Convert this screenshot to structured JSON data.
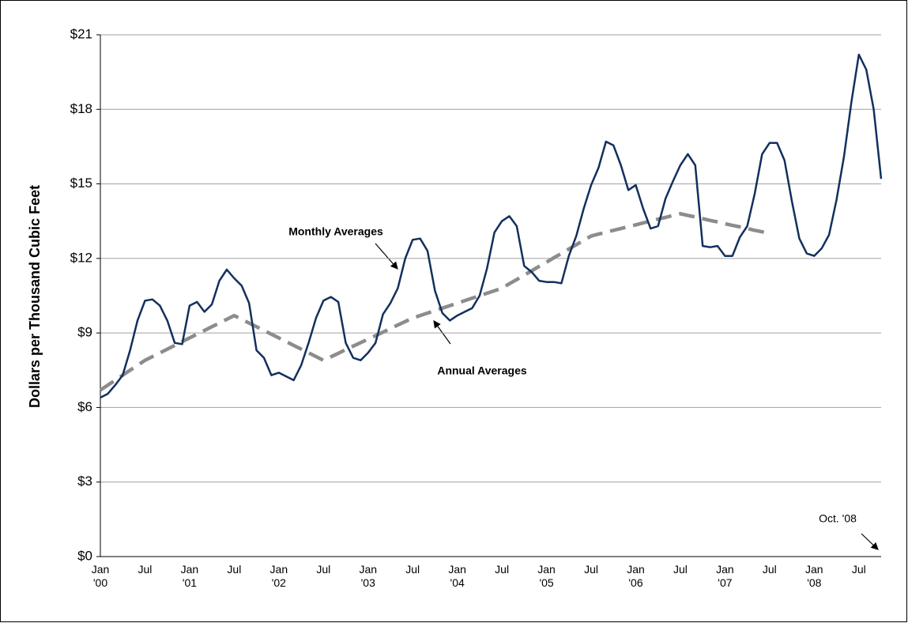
{
  "chart_data": {
    "type": "line",
    "y_label": "Dollars per Thousand Cubic Feet",
    "annotation": "Oct. '08",
    "categories": [
      "Jan '00",
      null,
      null,
      null,
      null,
      null,
      "Jul",
      null,
      null,
      null,
      null,
      null,
      "Jan '01",
      null,
      null,
      null,
      null,
      null,
      "Jul",
      null,
      null,
      null,
      null,
      null,
      "Jan '02",
      null,
      null,
      null,
      null,
      null,
      "Jul",
      null,
      null,
      null,
      null,
      null,
      "Jan '03",
      null,
      null,
      null,
      null,
      null,
      "Jul",
      null,
      null,
      null,
      null,
      null,
      "Jan '04",
      null,
      null,
      null,
      null,
      null,
      "Jul",
      null,
      null,
      null,
      null,
      null,
      "Jan '05",
      null,
      null,
      null,
      null,
      null,
      "Jul",
      null,
      null,
      null,
      null,
      null,
      "Jan '06",
      null,
      null,
      null,
      null,
      null,
      "Jul",
      null,
      null,
      null,
      null,
      null,
      "Jan '07",
      null,
      null,
      null,
      null,
      null,
      "Jul",
      null,
      null,
      null,
      null,
      null,
      "Jan '08",
      null,
      null,
      null,
      null,
      null,
      "Jul",
      null,
      null,
      null
    ],
    "series": [
      {
        "name": "Monthly Averages",
        "color": "#12305e",
        "style": "solid",
        "values": [
          6.4,
          6.55,
          6.9,
          7.3,
          8.3,
          9.5,
          10.3,
          10.35,
          10.1,
          9.5,
          8.6,
          8.55,
          10.1,
          10.25,
          9.85,
          10.15,
          11.1,
          11.55,
          11.2,
          10.9,
          10.2,
          8.3,
          8.0,
          7.3,
          7.4,
          7.25,
          7.1,
          7.7,
          8.6,
          9.6,
          10.3,
          10.45,
          10.25,
          8.6,
          8.0,
          7.9,
          8.2,
          8.6,
          9.75,
          10.2,
          10.8,
          12.0,
          12.75,
          12.8,
          12.3,
          10.7,
          9.8,
          9.5,
          9.7,
          9.85,
          10.0,
          10.5,
          11.6,
          13.05,
          13.5,
          13.7,
          13.3,
          11.7,
          11.45,
          11.1,
          11.05,
          11.05,
          11.0,
          12.1,
          12.9,
          14.0,
          14.95,
          15.65,
          16.7,
          16.55,
          15.75,
          14.75,
          14.95,
          14.0,
          13.2,
          13.3,
          14.4,
          15.1,
          15.75,
          16.2,
          15.75,
          12.5,
          12.45,
          12.5,
          12.1,
          12.1,
          12.85,
          13.3,
          14.6,
          16.2,
          16.65,
          16.65,
          15.95,
          14.3,
          12.8,
          12.2,
          12.1,
          12.4,
          12.95,
          14.35,
          16.1,
          18.3,
          20.2,
          19.6,
          18.0,
          15.2
        ]
      },
      {
        "name": "Annual Averages",
        "color": "#8c8c8c",
        "style": "dashed",
        "values": [
          6.7,
          6.9,
          7.1,
          7.3,
          7.5,
          7.7,
          7.9,
          8.05,
          8.2,
          8.35,
          8.5,
          8.65,
          8.8,
          8.95,
          9.1,
          9.25,
          9.4,
          9.55,
          9.7,
          9.55,
          9.4,
          9.25,
          9.1,
          8.95,
          8.8,
          8.65,
          8.5,
          8.35,
          8.2,
          8.05,
          7.9,
          8.04,
          8.18,
          8.33,
          8.47,
          8.61,
          8.75,
          8.89,
          9.03,
          9.18,
          9.32,
          9.46,
          9.6,
          9.7,
          9.8,
          9.9,
          10.0,
          10.1,
          10.2,
          10.3,
          10.4,
          10.5,
          10.6,
          10.7,
          10.8,
          10.98,
          11.15,
          11.33,
          11.5,
          11.68,
          11.85,
          12.03,
          12.2,
          12.38,
          12.55,
          12.73,
          12.9,
          12.98,
          13.05,
          13.13,
          13.2,
          13.28,
          13.35,
          13.43,
          13.5,
          13.58,
          13.65,
          13.73,
          13.8,
          13.73,
          13.67,
          13.6,
          13.53,
          13.47,
          13.4,
          13.33,
          13.27,
          13.2,
          13.13,
          13.07,
          13.0,
          null,
          null,
          null,
          null,
          null,
          null,
          null,
          null,
          null,
          null,
          null,
          null,
          null,
          null,
          null
        ]
      }
    ],
    "ylim": [
      0,
      21
    ],
    "yticks": [
      {
        "value": 0,
        "label": "$0"
      },
      {
        "value": 3,
        "label": "$3"
      },
      {
        "value": 6,
        "label": "$6"
      },
      {
        "value": 9,
        "label": "$9"
      },
      {
        "value": 12,
        "label": "$12"
      },
      {
        "value": 15,
        "label": "$15"
      },
      {
        "value": 18,
        "label": "$18"
      },
      {
        "value": 21,
        "label": "$21"
      }
    ],
    "grid": true
  }
}
